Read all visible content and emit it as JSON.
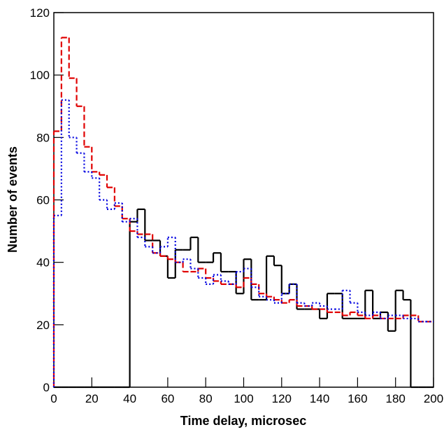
{
  "chart_data": {
    "type": "histogram",
    "xlabel": "Time delay, microsec",
    "ylabel": "Number of events",
    "bins": [
      0,
      4,
      8,
      12,
      16,
      20,
      24,
      28,
      32,
      36,
      40,
      44,
      48,
      52,
      56,
      60,
      64,
      68,
      72,
      76,
      80,
      84,
      88,
      92,
      96,
      100,
      104,
      108,
      112,
      116,
      120,
      124,
      128,
      132,
      136,
      140,
      144,
      148,
      152,
      156,
      160,
      164,
      168,
      172,
      176,
      180,
      184,
      188,
      192,
      196,
      200
    ],
    "series": [
      {
        "color": "#000000",
        "dash": "solid",
        "values": [
          0,
          0,
          0,
          0,
          0,
          0,
          0,
          0,
          0,
          0,
          53,
          57,
          47,
          47,
          42,
          35,
          44,
          44,
          48,
          40,
          40,
          43,
          37,
          37,
          30,
          41,
          28,
          28,
          42,
          39,
          30,
          33,
          25,
          25,
          25,
          22,
          30,
          30,
          22,
          22,
          22,
          31,
          22,
          24,
          18,
          31,
          28,
          0,
          0,
          0
        ]
      },
      {
        "color": "#e00000",
        "dash": "dashed",
        "values": [
          82,
          112,
          99,
          90,
          77,
          69,
          68,
          64,
          58,
          54,
          50,
          49,
          49,
          43,
          42,
          41,
          40,
          37,
          37,
          38,
          35,
          34,
          33,
          33,
          32,
          35,
          33,
          30,
          29,
          28,
          27,
          28,
          26,
          26,
          25,
          25,
          24,
          24,
          23,
          24,
          23,
          22,
          23,
          22,
          22,
          22,
          23,
          23,
          21,
          21
        ]
      },
      {
        "color": "#0000e0",
        "dash": "dotted",
        "values": [
          55,
          92,
          80,
          75,
          69,
          67,
          60,
          57,
          59,
          53,
          54,
          48,
          45,
          43,
          45,
          48,
          40,
          41,
          38,
          35,
          33,
          36,
          34,
          33,
          37,
          38,
          32,
          29,
          28,
          27,
          30,
          33,
          27,
          26,
          27,
          26,
          25,
          25,
          31,
          27,
          24,
          23,
          24,
          22,
          23,
          23,
          22,
          22,
          21,
          21
        ]
      }
    ],
    "xlim": [
      0,
      200
    ],
    "xticks": [
      0,
      20,
      40,
      60,
      80,
      100,
      120,
      140,
      160,
      180,
      200
    ],
    "ylim": [
      0,
      120
    ],
    "yticks": [
      0,
      20,
      40,
      60,
      80,
      100,
      120
    ]
  }
}
